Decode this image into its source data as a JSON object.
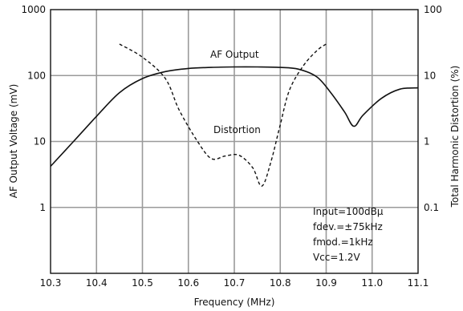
{
  "chart_data": {
    "type": "line",
    "xlabel": "Frequency (MHz)",
    "ylabel_left": "AF Output Voltage (mV)",
    "ylabel_right": "Total Harmonic Distortion (%)",
    "xlim": [
      10.3,
      11.1
    ],
    "ylim_left": [
      0.1,
      1000
    ],
    "ylim_right": [
      0.01,
      100
    ],
    "yscale": "log",
    "grid": true,
    "x_ticks": [
      "10.3",
      "10.4",
      "10.5",
      "10.6",
      "10.7",
      "10.8",
      "10.9",
      "11.0",
      "11.1"
    ],
    "y_ticks_left": [
      "1000",
      "100",
      "10",
      "1"
    ],
    "y_ticks_right": [
      "100",
      "10",
      "1",
      "0.1"
    ],
    "annotations": [
      "Input=100dBμ",
      "fdev.=±75kHz",
      "fmod.=1kHz",
      "Vcc=1.2V"
    ],
    "series": [
      {
        "name": "AF Output",
        "axis": "left",
        "x": [
          10.3,
          10.35,
          10.4,
          10.45,
          10.5,
          10.55,
          10.6,
          10.65,
          10.7,
          10.75,
          10.8,
          10.84,
          10.88,
          10.91,
          10.94,
          10.96,
          10.98,
          11.02,
          11.06,
          11.1
        ],
        "y": [
          4.2,
          10,
          24,
          55,
          90,
          115,
          128,
          133,
          135,
          135,
          133,
          125,
          95,
          55,
          28,
          17,
          25,
          45,
          62,
          65
        ]
      },
      {
        "name": "Distortion",
        "axis": "right",
        "x": [
          10.45,
          10.5,
          10.55,
          10.58,
          10.62,
          10.65,
          10.68,
          10.71,
          10.74,
          10.76,
          10.78,
          10.8,
          10.82,
          10.85,
          10.88,
          10.9
        ],
        "y": [
          30,
          19,
          9,
          3,
          1,
          0.55,
          0.6,
          0.62,
          0.4,
          0.21,
          0.5,
          1.8,
          6,
          14,
          24,
          30
        ]
      }
    ]
  }
}
